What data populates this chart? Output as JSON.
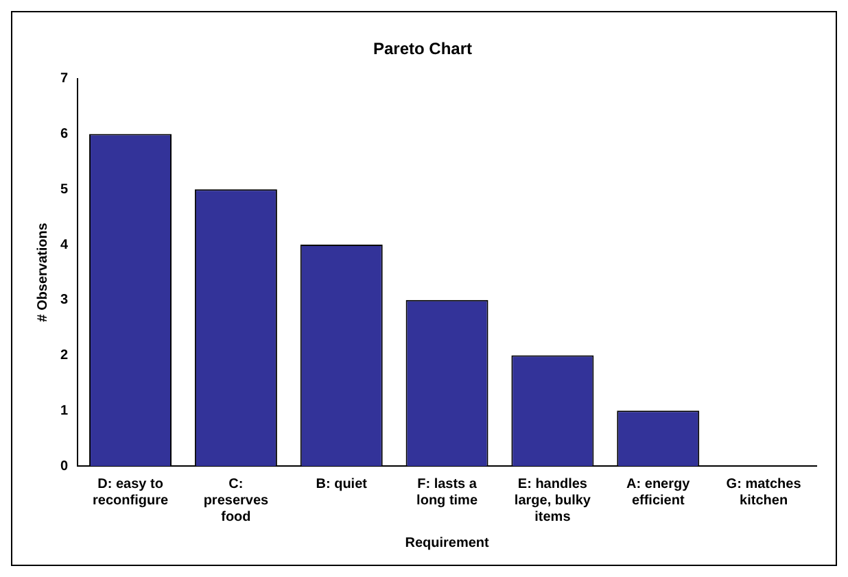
{
  "chart_data": {
    "type": "bar",
    "title": "Pareto Chart",
    "xlabel": "Requirement",
    "ylabel": "# Observations",
    "categories": [
      "D: easy to reconfigure",
      "C: preserves food",
      "B: quiet",
      "F: lasts a long time",
      "E: handles large, bulky items",
      "A: energy efficient",
      "G: matches kitchen"
    ],
    "values": [
      6,
      5,
      4,
      3,
      2,
      1,
      0
    ],
    "color": "#333399",
    "ylim": [
      0,
      7
    ],
    "yticks": [
      0,
      1,
      2,
      3,
      4,
      5,
      6,
      7
    ],
    "grid": false,
    "legend": false
  }
}
